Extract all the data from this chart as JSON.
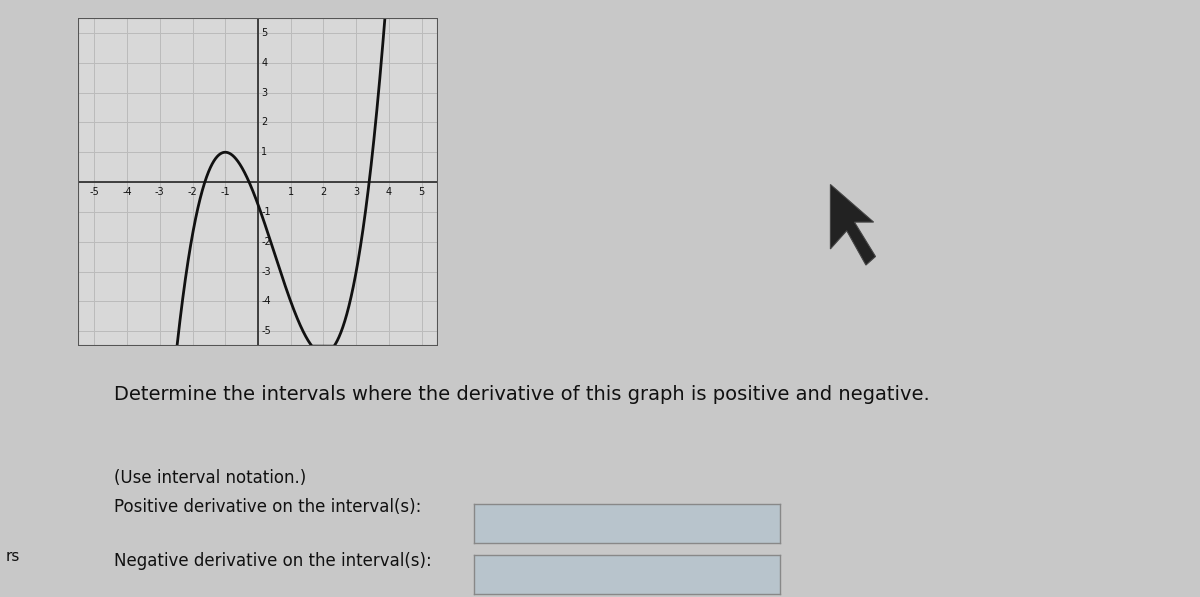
{
  "xlim": [
    -5.5,
    5.5
  ],
  "ylim": [
    -5.5,
    5.5
  ],
  "xticks": [
    -5,
    -4,
    -3,
    -2,
    -1,
    1,
    2,
    3,
    4,
    5
  ],
  "yticks": [
    -5,
    -4,
    -3,
    -2,
    -1,
    1,
    2,
    3,
    4,
    5
  ],
  "grid_color": "#bbbbbb",
  "axis_color": "#333333",
  "curve_color": "#111111",
  "curve_lw": 2.0,
  "background_color": "#c8c8c8",
  "graph_bg": "#d8d8d8",
  "title": "Determine the intervals where the derivative of this graph is positive and negative.",
  "subtitle": "(Use interval notation.)",
  "label1": "Positive derivative on the interval(s):",
  "label2": "Negative derivative on the interval(s):",
  "text_color": "#111111",
  "box_facecolor": "#b8c4cc",
  "box_edgecolor": "#888888",
  "font_size_title": 14,
  "font_size_label": 12,
  "rs_text": "rs",
  "curve_a": 0.5,
  "curve_b": -0.75,
  "curve_c": -3.0,
  "curve_d": -0.75,
  "curve_xstart": -3.35,
  "curve_xend": 4.85
}
